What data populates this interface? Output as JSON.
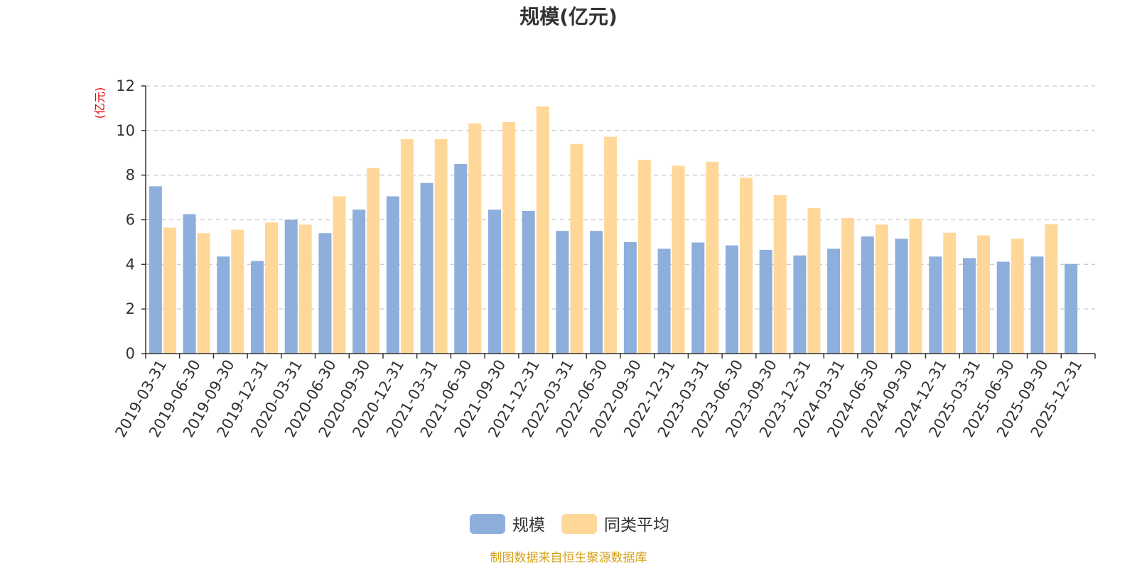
{
  "chart_data": {
    "type": "bar",
    "title": "规模(亿元)",
    "ylabel": "(亿元)",
    "ylim": [
      0,
      12
    ],
    "yticks": [
      0,
      2,
      4,
      6,
      8,
      10,
      12
    ],
    "grid": true,
    "legend_position": "bottom-center",
    "categories": [
      "2019-03-31",
      "2019-06-30",
      "2019-09-30",
      "2019-12-31",
      "2020-03-31",
      "2020-06-30",
      "2020-09-30",
      "2020-12-31",
      "2021-03-31",
      "2021-06-30",
      "2021-09-30",
      "2021-12-31",
      "2022-03-31",
      "2022-06-30",
      "2022-09-30",
      "2022-12-31",
      "2023-03-31",
      "2023-06-30",
      "2023-09-30",
      "2023-12-31",
      "2024-03-31",
      "2024-06-30",
      "2024-09-30",
      "2024-12-31",
      "2025-03-31",
      "2025-06-30",
      "2025-09-30",
      "2025-12-31"
    ],
    "series": [
      {
        "name": "规模",
        "color": "#8eaedb",
        "values": [
          7.5,
          6.25,
          4.35,
          4.15,
          6.0,
          5.4,
          6.45,
          7.05,
          7.65,
          8.5,
          6.45,
          6.4,
          5.5,
          5.5,
          5.0,
          4.7,
          4.98,
          4.85,
          4.65,
          4.4,
          4.7,
          5.25,
          5.15,
          4.35,
          4.28,
          4.12,
          4.35,
          4.02
        ]
      },
      {
        "name": "同类平均",
        "color": "#ffd899",
        "values": [
          5.65,
          5.4,
          5.55,
          5.88,
          5.78,
          7.05,
          8.32,
          9.62,
          9.62,
          10.32,
          10.38,
          11.08,
          9.4,
          9.72,
          8.68,
          8.42,
          8.6,
          7.88,
          7.1,
          6.52,
          6.08,
          5.78,
          6.05,
          5.42,
          5.3,
          5.15,
          5.8,
          null
        ]
      }
    ],
    "source_note": "制图数据来自恒生聚源数据库",
    "colors": {
      "title": "#333333",
      "unit_label": "#e60000",
      "source_note": "#d4a017",
      "axis": "#333333",
      "grid": "#cccccc"
    }
  }
}
